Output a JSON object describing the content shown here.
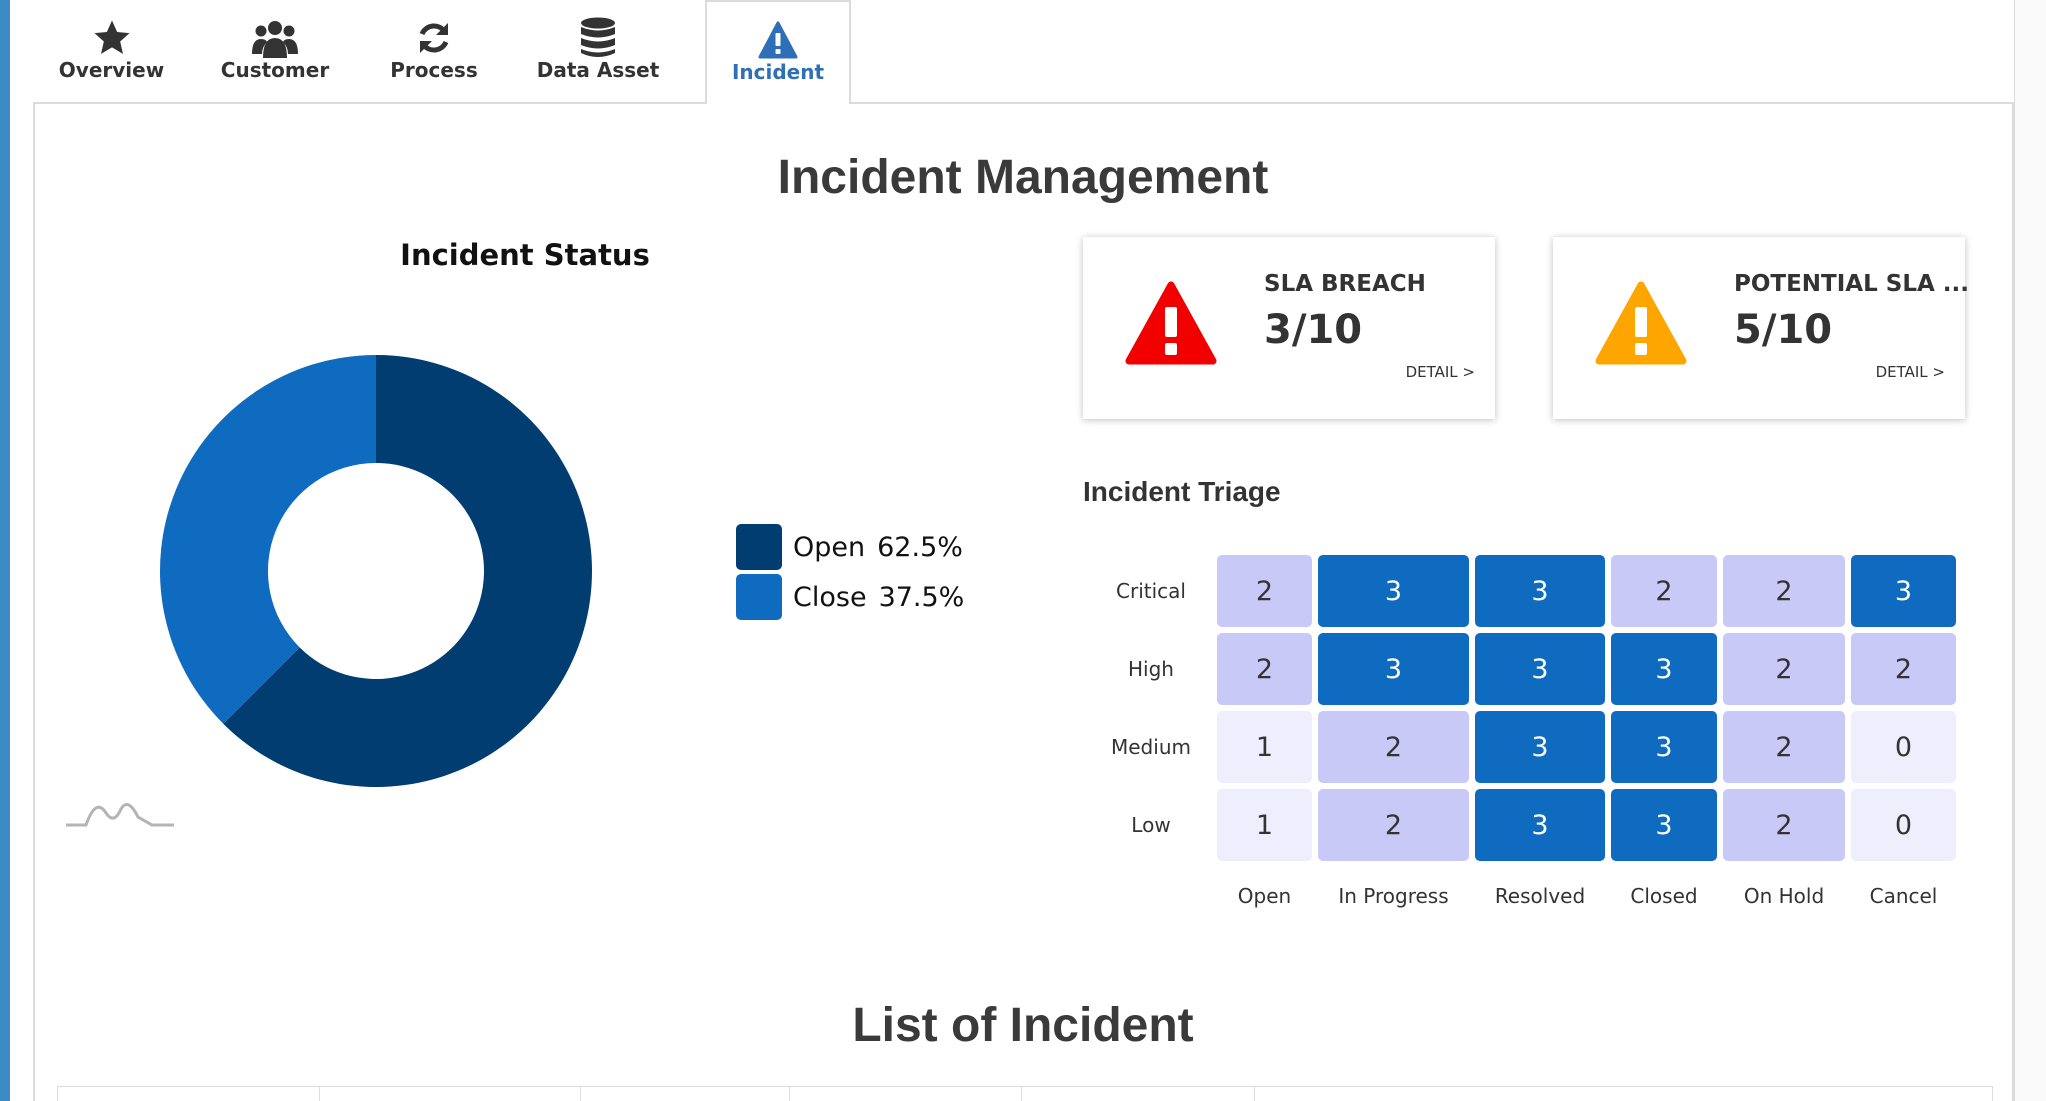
{
  "tabs": [
    {
      "label": "Overview",
      "icon": "star-icon",
      "active": false
    },
    {
      "label": "Customer",
      "icon": "users-icon",
      "active": false
    },
    {
      "label": "Process",
      "icon": "refresh-icon",
      "active": false
    },
    {
      "label": "Data Asset",
      "icon": "database-icon",
      "active": false
    },
    {
      "label": "Incident",
      "icon": "warning-icon",
      "active": true
    }
  ],
  "page_title": "Incident Management",
  "incident_status": {
    "title": "Incident Status",
    "chart_data": {
      "type": "pie",
      "title": "Incident Status",
      "slices": [
        {
          "label": "Open",
          "value": 62.5,
          "display": "62.5%",
          "color": "#023d72"
        },
        {
          "label": "Close",
          "value": 37.5,
          "display": "37.5%",
          "color": "#0e6bbf"
        }
      ],
      "legend_position": "right"
    }
  },
  "cards": [
    {
      "title": "SLA BREACH",
      "value": "3/10",
      "detail": "DETAIL >",
      "icon": "warning-triangle-icon",
      "icon_color": "#f20000"
    },
    {
      "title": "POTENTIAL SLA ...",
      "value": "5/10",
      "detail": "DETAIL >",
      "icon": "warning-triangle-icon",
      "icon_color": "#ffa500"
    }
  ],
  "triage": {
    "title": "Incident Triage",
    "chart_data": {
      "type": "heatmap",
      "title": "Incident Triage",
      "rows": [
        "Critical",
        "High",
        "Medium",
        "Low"
      ],
      "columns": [
        "Open",
        "In Progress",
        "Resolved",
        "Closed",
        "On Hold",
        "Cancel"
      ],
      "values": [
        [
          2,
          3,
          3,
          2,
          2,
          3
        ],
        [
          2,
          3,
          3,
          3,
          2,
          2
        ],
        [
          1,
          2,
          3,
          3,
          2,
          0
        ],
        [
          1,
          2,
          3,
          3,
          2,
          0
        ]
      ],
      "color_scale": {
        "0": "#eeeefc",
        "1": "#eeeefc",
        "2": "#c9c9f8",
        "3": "#0e6bbf"
      }
    }
  },
  "list_title": "List of Incident"
}
